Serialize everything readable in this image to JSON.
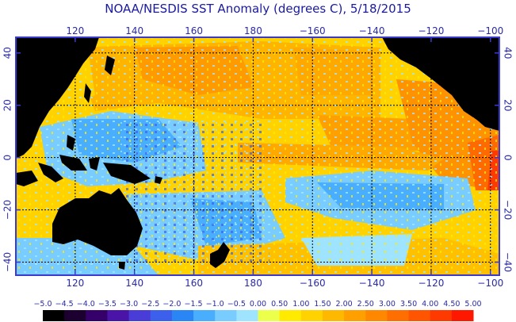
{
  "title": "NOAA/NESDIS SST Anomaly (degrees C), 5/18/2015",
  "map": {
    "x_ticks": [
      "120",
      "140",
      "160",
      "180",
      "−160",
      "−140",
      "−120",
      "−100"
    ],
    "y_ticks_left": [
      "40",
      "20",
      "0",
      "−20",
      "−40"
    ],
    "y_ticks_right": [
      "40",
      "20",
      "0",
      "−20",
      "−40"
    ],
    "lon_range": [
      100,
      263
    ],
    "lat_range": [
      -45,
      46
    ],
    "grid": true,
    "land_color": "#000000",
    "frame_color": "#3a3acf"
  },
  "colorbar": {
    "labels": [
      "−5.0",
      "−4.5",
      "−4.0",
      "−3.5",
      "−3.0",
      "−2.5",
      "−2.0",
      "−1.5",
      "−1.0",
      "−0.5",
      "0.00",
      "0.50",
      "1.00",
      "1.50",
      "2.00",
      "2.50",
      "3.00",
      "3.50",
      "4.00",
      "4.50",
      "5.00"
    ],
    "colors": [
      "#000000",
      "#1c0030",
      "#36006a",
      "#4a14a8",
      "#4a3cd6",
      "#3c60ec",
      "#2a86f4",
      "#4aaeff",
      "#78ccff",
      "#9ee4ff",
      "#ecff4a",
      "#ffea00",
      "#ffd200",
      "#ffb800",
      "#ffa000",
      "#ff8800",
      "#ff6e00",
      "#ff5400",
      "#ff3a00",
      "#ff1800"
    ]
  }
}
